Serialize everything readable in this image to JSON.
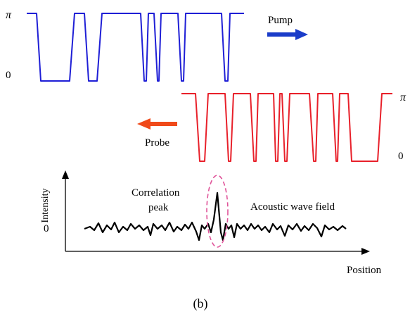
{
  "pump": {
    "label": "Pump",
    "upper_level_label": "π",
    "lower_level_label": "0",
    "color": "#1f1fd6",
    "arrow_color": "#1a3cc9",
    "sequence": [
      1,
      0,
      1,
      0,
      1,
      0,
      1,
      0,
      1,
      0,
      1,
      0,
      1
    ]
  },
  "probe": {
    "label": "Probe",
    "upper_level_label": "π",
    "lower_level_label": "0",
    "color": "#e8202a",
    "arrow_color": "#f04a1a",
    "sequence": [
      1,
      0,
      1,
      0,
      1,
      0,
      1,
      0,
      1,
      0,
      1,
      0,
      1,
      0,
      1
    ]
  },
  "intensity_plot": {
    "ylabel": "Intensity",
    "xlabel": "Position",
    "zero_label": "0",
    "peak_label_line1": "Correlation",
    "peak_label_line2": "peak",
    "field_label": "Acoustic wave field",
    "ellipse_color": "#e0559a"
  },
  "caption": "(b)"
}
